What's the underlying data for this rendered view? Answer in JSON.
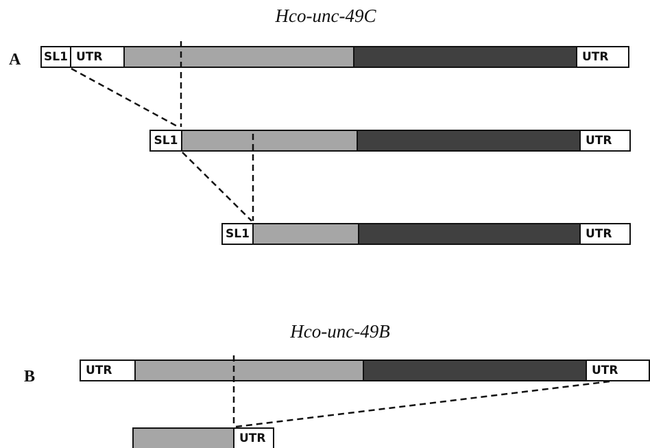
{
  "panel_a": {
    "label": "A",
    "title": "Hco-unc-49C",
    "transcripts": [
      {
        "segments": [
          "SL1",
          "UTR",
          "",
          "",
          "UTR"
        ]
      },
      {
        "segments": [
          "SL1",
          "",
          "",
          "UTR"
        ]
      },
      {
        "segments": [
          "SL1",
          "",
          "",
          "UTR"
        ]
      }
    ]
  },
  "panel_b": {
    "label": "B",
    "title": "Hco-unc-49B",
    "transcripts": [
      {
        "segments": [
          "UTR",
          "",
          "",
          "UTR"
        ]
      },
      {
        "segments": [
          "",
          "UTR"
        ]
      }
    ]
  },
  "colors": {
    "utr_box": "#ffffff",
    "coding_light": "#a6a6a6",
    "coding_dark": "#404040",
    "outline": "#111111"
  }
}
